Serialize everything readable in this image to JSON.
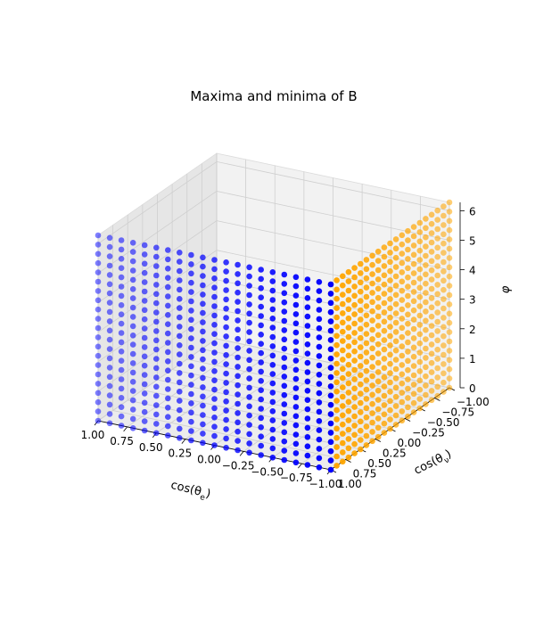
{
  "chart_data": {
    "type": "scatter",
    "projection": "3d",
    "title": "Maxima and minima of B",
    "xlabel": {
      "prefix": "cos(θ",
      "sub": "e",
      "suffix": ")"
    },
    "ylabel": {
      "prefix": "cos(θ",
      "sub": "ν",
      "suffix": ")"
    },
    "zlabel": "φ",
    "xlim": [
      -1.0,
      1.0
    ],
    "ylim": [
      -1.0,
      1.0
    ],
    "zlim": [
      0,
      6.283
    ],
    "x_ticks": [
      "1.00",
      "0.75",
      "0.50",
      "0.25",
      "0.00",
      "−0.25",
      "−0.50",
      "−0.75",
      "−1.00"
    ],
    "y_ticks": [
      "1.00",
      "0.75",
      "0.50",
      "0.25",
      "0.00",
      "−0.25",
      "−0.50",
      "−0.75",
      "−1.00"
    ],
    "z_ticks": [
      "0",
      "1",
      "2",
      "3",
      "4",
      "5",
      "6"
    ],
    "grid": true,
    "series": [
      {
        "color": "#0000ff",
        "description": "plane cos(θν) = 1.00",
        "x_range": [
          -1.0,
          1.0
        ],
        "x_count": 21,
        "y_fixed": 1.0,
        "z_range": [
          0,
          6.283
        ],
        "z_count": 21
      },
      {
        "color": "#ffa500",
        "description": "plane cos(θe) = -1.00",
        "x_fixed": -1.0,
        "y_range": [
          -1.0,
          1.0
        ],
        "y_count": 21,
        "z_range": [
          0,
          6.283
        ],
        "z_count": 21
      }
    ]
  }
}
